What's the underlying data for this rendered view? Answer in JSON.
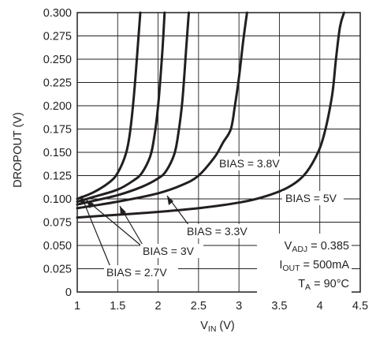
{
  "chart_data": {
    "type": "line",
    "xlabel": {
      "main": "V",
      "sub": "IN",
      "unit": " (V)"
    },
    "ylabel": "DROPOUT (V)",
    "xlim": [
      1,
      4.5
    ],
    "ylim": [
      0,
      0.3
    ],
    "x_ticks": [
      1,
      1.5,
      2,
      2.5,
      3,
      3.5,
      4,
      4.5
    ],
    "x_tick_labels": [
      "1",
      "1.5",
      "2",
      "2.5",
      "3",
      "3.5",
      "4",
      "4.5"
    ],
    "y_ticks": [
      0,
      0.025,
      0.05,
      0.075,
      0.1,
      0.125,
      0.15,
      0.175,
      0.2,
      0.225,
      0.25,
      0.275,
      0.3
    ],
    "y_tick_labels": [
      "0",
      "0.025",
      "0.050",
      "0.075",
      "0.100",
      "0.125",
      "0.150",
      "0.175",
      "0.200",
      "0.225",
      "0.250",
      "0.275",
      "0.300"
    ],
    "grid": true,
    "series": [
      {
        "name": "BIAS = 2.7V",
        "x": [
          1.0,
          1.2,
          1.4,
          1.5,
          1.6,
          1.65,
          1.7,
          1.75,
          1.78
        ],
        "y": [
          0.1,
          0.107,
          0.118,
          0.128,
          0.148,
          0.17,
          0.21,
          0.265,
          0.3
        ]
      },
      {
        "name": "BIAS = 3V",
        "x": [
          1.0,
          1.2,
          1.5,
          1.7,
          1.8,
          1.9,
          1.95,
          2.0,
          2.05,
          2.08
        ],
        "y": [
          0.097,
          0.102,
          0.11,
          0.12,
          0.128,
          0.145,
          0.165,
          0.2,
          0.255,
          0.3
        ]
      },
      {
        "name": "BIAS = 3.3V",
        "x": [
          1.0,
          1.5,
          1.8,
          2.0,
          2.1,
          2.2,
          2.25,
          2.3,
          2.35,
          2.38
        ],
        "y": [
          0.094,
          0.104,
          0.113,
          0.122,
          0.13,
          0.148,
          0.17,
          0.205,
          0.265,
          0.3
        ]
      },
      {
        "name": "BIAS = 3.8V",
        "x": [
          1.0,
          1.5,
          2.0,
          2.3,
          2.5,
          2.7,
          2.8,
          2.9,
          2.95,
          3.0,
          3.05,
          3.1
        ],
        "y": [
          0.09,
          0.097,
          0.106,
          0.115,
          0.125,
          0.145,
          0.16,
          0.175,
          0.2,
          0.23,
          0.268,
          0.3
        ]
      },
      {
        "name": "BIAS = 5V",
        "x": [
          1.0,
          1.5,
          2.0,
          2.5,
          3.0,
          3.3,
          3.6,
          3.8,
          3.95,
          4.05,
          4.15,
          4.2,
          4.25,
          4.3
        ],
        "y": [
          0.08,
          0.083,
          0.086,
          0.09,
          0.096,
          0.102,
          0.112,
          0.125,
          0.145,
          0.168,
          0.21,
          0.25,
          0.285,
          0.3
        ]
      }
    ],
    "annotations": [
      {
        "text": "BIAS = 2.7V"
      },
      {
        "text": "BIAS = 3V"
      },
      {
        "text": "BIAS = 3.3V"
      },
      {
        "text": "BIAS = 3.8V"
      },
      {
        "text": "BIAS = 5V"
      }
    ],
    "conditions": {
      "line1": {
        "main": "V",
        "sub": "ADJ",
        "rest": " = 0.385"
      },
      "line2": {
        "main": "I",
        "sub": "OUT",
        "rest": " = 500mA"
      },
      "line3": {
        "main": "T",
        "sub": "A",
        "rest": " = 90°C"
      }
    }
  }
}
